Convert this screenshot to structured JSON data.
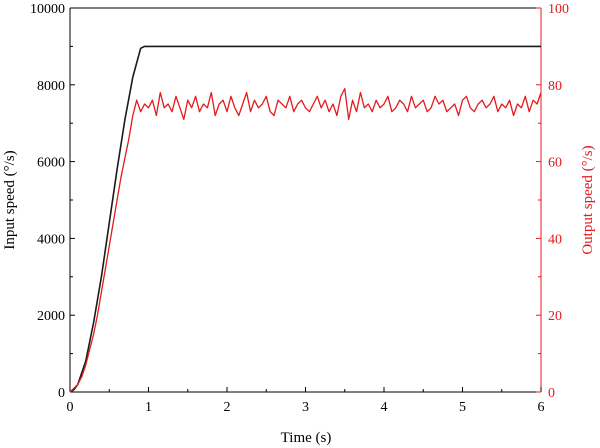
{
  "chart_data": {
    "type": "line",
    "title": "",
    "xlabel": "Time (s)",
    "ylabel_left": "Input speed (°/s)",
    "ylabel_right": "Output speed (°/s)",
    "xlim": [
      0,
      6
    ],
    "ylim_left": [
      0,
      10000
    ],
    "ylim_right": [
      0,
      100
    ],
    "xticks": [
      "0",
      "1",
      "2",
      "3",
      "4",
      "5",
      "6"
    ],
    "yticks_left": [
      "0",
      "2000",
      "4000",
      "6000",
      "8000",
      "10000"
    ],
    "yticks_right": [
      "0",
      "20",
      "40",
      "60",
      "80",
      "100"
    ],
    "grid": false,
    "legend": "none",
    "colors": {
      "input": "#1a1a1a",
      "output": "#e41a1c",
      "axis_left": "#000000",
      "axis_right": "#e41a1c"
    },
    "series": [
      {
        "axis": "left",
        "x": [
          0,
          0.05,
          0.1,
          0.2,
          0.3,
          0.4,
          0.5,
          0.6,
          0.7,
          0.8,
          0.9,
          0.95,
          1.0,
          1.5,
          2.0,
          3.0,
          4.0,
          5.0,
          6.0
        ],
        "values": [
          0,
          60,
          200,
          800,
          1800,
          3000,
          4400,
          5800,
          7100,
          8200,
          8950,
          9000,
          9000,
          9000,
          9000,
          9000,
          9000,
          9000,
          9000
        ]
      },
      {
        "axis": "right",
        "x": [
          0,
          0.05,
          0.1,
          0.15,
          0.2,
          0.25,
          0.3,
          0.35,
          0.4,
          0.45,
          0.5,
          0.55,
          0.6,
          0.65,
          0.7,
          0.75,
          0.8,
          0.85,
          0.9,
          0.95,
          1.0,
          1.05,
          1.1,
          1.15,
          1.2,
          1.25,
          1.3,
          1.35,
          1.4,
          1.45,
          1.5,
          1.55,
          1.6,
          1.65,
          1.7,
          1.75,
          1.8,
          1.85,
          1.9,
          1.95,
          2.0,
          2.05,
          2.1,
          2.15,
          2.2,
          2.25,
          2.3,
          2.35,
          2.4,
          2.45,
          2.5,
          2.55,
          2.6,
          2.65,
          2.7,
          2.75,
          2.8,
          2.85,
          2.9,
          2.95,
          3.0,
          3.05,
          3.1,
          3.15,
          3.2,
          3.25,
          3.3,
          3.35,
          3.4,
          3.45,
          3.5,
          3.55,
          3.6,
          3.65,
          3.7,
          3.75,
          3.8,
          3.85,
          3.9,
          3.95,
          4.0,
          4.05,
          4.1,
          4.15,
          4.2,
          4.25,
          4.3,
          4.35,
          4.4,
          4.45,
          4.5,
          4.55,
          4.6,
          4.65,
          4.7,
          4.75,
          4.8,
          4.85,
          4.9,
          4.95,
          5.0,
          5.05,
          5.1,
          5.15,
          5.2,
          5.25,
          5.3,
          5.35,
          5.4,
          5.45,
          5.5,
          5.55,
          5.6,
          5.65,
          5.7,
          5.75,
          5.8,
          5.85,
          5.9,
          5.95,
          6.0
        ],
        "values": [
          0,
          1,
          2,
          4,
          7,
          11,
          15,
          20,
          26,
          32,
          38,
          44,
          50,
          56,
          61,
          66,
          72,
          76,
          73,
          75,
          74,
          76,
          72,
          78,
          74,
          75,
          73,
          77,
          74,
          71,
          76,
          74,
          77,
          73,
          75,
          74,
          78,
          72,
          75,
          76,
          73,
          77,
          74,
          72,
          75,
          78,
          73,
          76,
          74,
          75,
          77,
          73,
          72,
          76,
          75,
          74,
          77,
          73,
          75,
          76,
          74,
          73,
          75,
          77,
          74,
          76,
          73,
          75,
          72,
          77,
          79,
          71,
          76,
          73,
          78,
          74,
          75,
          73,
          76,
          74,
          75,
          77,
          73,
          74,
          76,
          75,
          73,
          77,
          74,
          75,
          76,
          73,
          74,
          77,
          75,
          76,
          73,
          74,
          75,
          72,
          76,
          77,
          74,
          73,
          75,
          76,
          74,
          75,
          77,
          73,
          75,
          74,
          76,
          72,
          75,
          74,
          77,
          73,
          76,
          75,
          78
        ]
      }
    ]
  }
}
